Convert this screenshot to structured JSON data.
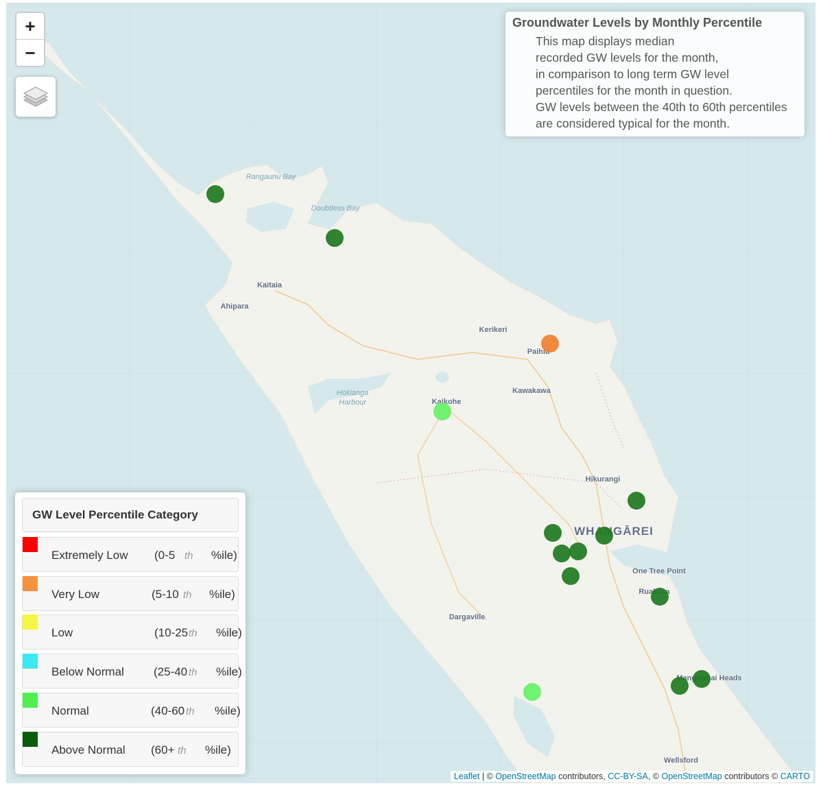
{
  "map": {
    "zoom_in_label": "+",
    "zoom_out_label": "−",
    "places": [
      {
        "name": "Kaitaia",
        "big": false
      },
      {
        "name": "Ahipara",
        "big": false
      },
      {
        "name": "Kerikeri",
        "big": false
      },
      {
        "name": "Paihia",
        "big": false
      },
      {
        "name": "Kawakawa",
        "big": false
      },
      {
        "name": "Kaikohe",
        "big": false
      },
      {
        "name": "Hikurangi",
        "big": false
      },
      {
        "name": "WHANGĀREI",
        "big": true
      },
      {
        "name": "One Tree Point",
        "big": false
      },
      {
        "name": "Ruakaka",
        "big": false
      },
      {
        "name": "Dargaville",
        "big": false
      },
      {
        "name": "Mangawhai Heads",
        "big": false
      },
      {
        "name": "Wellsford",
        "big": false
      }
    ],
    "water_labels": [
      "Rangaunu Bay",
      "Doubtless Bay",
      "Hokianga Harbour"
    ],
    "markers": [
      {
        "category": "Above Normal",
        "color": "#1f7a1f"
      },
      {
        "category": "Above Normal",
        "color": "#1f7a1f"
      },
      {
        "category": "Very Low",
        "color": "#f07f2e"
      },
      {
        "category": "Normal",
        "color": "#66f266"
      },
      {
        "category": "Above Normal",
        "color": "#1f7a1f"
      },
      {
        "category": "Above Normal",
        "color": "#1f7a1f"
      },
      {
        "category": "Above Normal",
        "color": "#1f7a1f"
      },
      {
        "category": "Above Normal",
        "color": "#1f7a1f"
      },
      {
        "category": "Above Normal",
        "color": "#1f7a1f"
      },
      {
        "category": "Above Normal",
        "color": "#1f7a1f"
      },
      {
        "category": "Above Normal",
        "color": "#1f7a1f"
      },
      {
        "category": "Above Normal",
        "color": "#1f7a1f"
      },
      {
        "category": "Above Normal",
        "color": "#1f7a1f"
      },
      {
        "category": "Normal",
        "color": "#66f266"
      }
    ]
  },
  "info": {
    "title": "Groundwater Levels by Monthly Percentile",
    "lines": [
      "This map displays median",
      "recorded GW levels for the month,",
      "in comparison to long term GW level",
      "percentiles for the month in question.",
      "GW levels between the 40th to 60th percentiles",
      "are considered typical for the month."
    ]
  },
  "legend": {
    "title": "GW Level Percentile Category",
    "items": [
      {
        "label": "Extremely Low",
        "range_open": "(0-5",
        "th": "th",
        "range_close": "%ile)",
        "color": "#ff0000"
      },
      {
        "label": "Very Low",
        "range_open": "(5-10",
        "th": "th",
        "range_close": "%ile)",
        "color": "#f5923e"
      },
      {
        "label": "Low",
        "range_open": "(10-25",
        "th": "th",
        "range_close": "%ile)",
        "color": "#f5f542"
      },
      {
        "label": "Below Normal",
        "range_open": "(25-40",
        "th": "th",
        "range_close": "%ile)",
        "color": "#3ee8f0"
      },
      {
        "label": "Normal",
        "range_open": "(40-60",
        "th": "th",
        "range_close": "%ile)",
        "color": "#4ff04f"
      },
      {
        "label": "Above Normal",
        "range_open": "(60+",
        "th": "th",
        "range_close": "%ile)",
        "color": "#0a5c0a"
      }
    ]
  },
  "attribution": {
    "leaflet": "Leaflet",
    "sep1": " | © ",
    "osm1": "OpenStreetMap",
    "contrib1": " contributors, ",
    "ccbysa": "CC-BY-SA",
    "sep2": ", © ",
    "osm2": "OpenStreetMap",
    "contrib2": " contributors © ",
    "carto": "CARTO"
  }
}
